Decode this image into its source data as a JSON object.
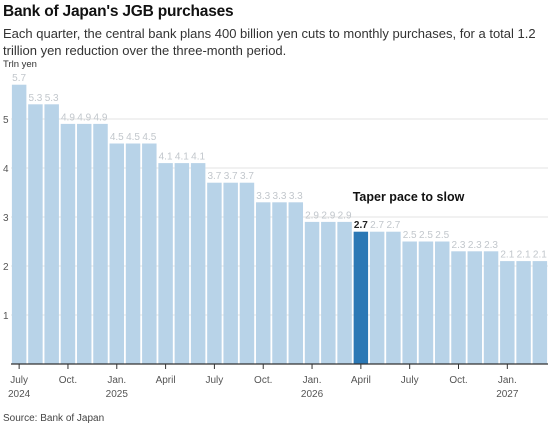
{
  "header": {
    "title": "Bank of Japan's JGB purchases",
    "subtitle": "Each quarter, the central bank plans 400 billion yen cuts to monthly purchases, for a total 1.2 trillion yen reduction over the three-month period.",
    "unit": "Trln yen"
  },
  "footer": {
    "source": "Source: Bank of Japan"
  },
  "chart_data": {
    "type": "bar",
    "title": "Bank of Japan's JGB purchases",
    "subtitle": "Each quarter, the central bank plans 400 billion yen cuts to monthly purchases, for a total 1.2 trillion yen reduction over the three-month period.",
    "ylabel": "Trln yen",
    "xlabel": "",
    "ylim": [
      0,
      6
    ],
    "yticks": [
      1,
      2,
      3,
      4,
      5
    ],
    "grid": true,
    "categories": [
      "Jul 2024",
      "Aug 2024",
      "Sep 2024",
      "Oct 2024",
      "Nov 2024",
      "Dec 2024",
      "Jan 2025",
      "Feb 2025",
      "Mar 2025",
      "Apr 2025",
      "May 2025",
      "Jun 2025",
      "Jul 2025",
      "Aug 2025",
      "Sep 2025",
      "Oct 2025",
      "Nov 2025",
      "Dec 2025",
      "Jan 2026",
      "Feb 2026",
      "Mar 2026",
      "Apr 2026",
      "May 2026",
      "Jun 2026",
      "Jul 2026",
      "Aug 2026",
      "Sep 2026",
      "Oct 2026",
      "Nov 2026",
      "Dec 2026",
      "Jan 2027",
      "Feb 2027",
      "Mar 2027"
    ],
    "values": [
      5.7,
      5.3,
      5.3,
      4.9,
      4.9,
      4.9,
      4.5,
      4.5,
      4.5,
      4.1,
      4.1,
      4.1,
      3.7,
      3.7,
      3.7,
      3.3,
      3.3,
      3.3,
      2.9,
      2.9,
      2.9,
      2.7,
      2.7,
      2.7,
      2.5,
      2.5,
      2.5,
      2.3,
      2.3,
      2.3,
      2.1,
      2.1,
      2.1
    ],
    "value_labels": [
      "5.7",
      "5.3",
      "5.3",
      "4.9",
      "4.9",
      "4.9",
      "4.5",
      "4.5",
      "4.5",
      "4.1",
      "4.1",
      "4.1",
      "3.7",
      "3.7",
      "3.7",
      "3.3",
      "3.3",
      "3.3",
      "2.9",
      "2.9",
      "2.9",
      "2.7",
      "2.7",
      "2.7",
      "2.5",
      "2.5",
      "2.5",
      "2.3",
      "2.3",
      "2.3",
      "2.1",
      "2.1",
      "2.1"
    ],
    "x_ticks": [
      {
        "index": 0,
        "label": "July",
        "year": "2024"
      },
      {
        "index": 3,
        "label": "Oct.",
        "year": ""
      },
      {
        "index": 6,
        "label": "Jan.",
        "year": "2025"
      },
      {
        "index": 9,
        "label": "April",
        "year": ""
      },
      {
        "index": 12,
        "label": "July",
        "year": ""
      },
      {
        "index": 15,
        "label": "Oct.",
        "year": ""
      },
      {
        "index": 18,
        "label": "Jan.",
        "year": "2026"
      },
      {
        "index": 21,
        "label": "April",
        "year": ""
      },
      {
        "index": 24,
        "label": "July",
        "year": ""
      },
      {
        "index": 27,
        "label": "Oct.",
        "year": ""
      },
      {
        "index": 30,
        "label": "Jan.",
        "year": "2027"
      }
    ],
    "highlight_index": 21,
    "annotation": {
      "text": "Taper pace to slow",
      "index": 21
    },
    "colors": {
      "bar": "#b8d3e8",
      "highlight": "#2b78b5",
      "label": "#c2c7cc",
      "highlight_label": "#222222",
      "grid": "#e3e3e3",
      "axis": "#333333"
    }
  }
}
